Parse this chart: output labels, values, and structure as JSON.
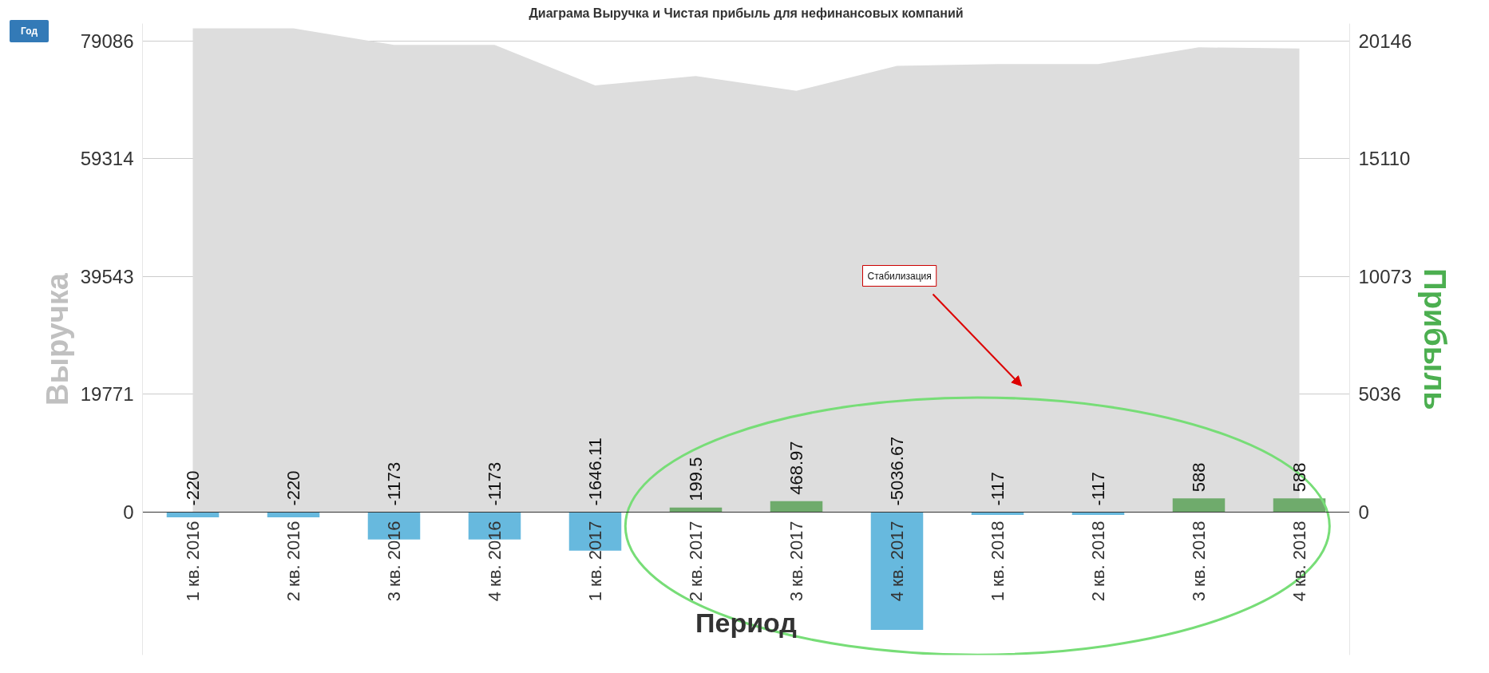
{
  "chart_data": {
    "type": "bar",
    "title": "Диаграма Выручка и Чистая прибыль для нефинансовых компаний",
    "xlabel": "Период",
    "ylabel": "Выручка",
    "y2label": "Прибыль",
    "categories": [
      "1 кв. 2016",
      "2 кв. 2016",
      "3 кв. 2016",
      "4 кв. 2016",
      "1 кв. 2017",
      "2 кв. 2017",
      "3 кв. 2017",
      "4 кв. 2017",
      "1 кв. 2018",
      "2 кв. 2018",
      "3 кв. 2018",
      "4 кв. 2018"
    ],
    "series": [
      {
        "type": "area",
        "axis": "y",
        "color": "#dddddd",
        "values": [
          81200,
          81200,
          78400,
          78400,
          71600,
          73200,
          70700,
          74900,
          75200,
          75200,
          78000,
          77800
        ]
      },
      {
        "axis": "y2",
        "colors": [
          "#67b9de",
          "#67b9de",
          "#67b9de",
          "#67b9de",
          "#67b9de",
          "#6fab6c",
          "#6fab6c",
          "#67b9de",
          "#67b9de",
          "#67b9de",
          "#6fab6c",
          "#6fab6c"
        ],
        "values": [
          -220,
          -220,
          -1173,
          -1173,
          -1646.11,
          199.5,
          468.97,
          -5036.67,
          -117,
          -117,
          588,
          588
        ],
        "value_labels": [
          "-220",
          "-220",
          "-1173",
          "-1173",
          "-1646.11",
          "199.5",
          "468.97",
          "-5036.67",
          "-117",
          "-117",
          "588",
          "588"
        ]
      }
    ],
    "ylim": [
      -24000,
      82000
    ],
    "yticks": [
      0,
      19771,
      39543,
      59314,
      79086
    ],
    "y2lim": [
      -6110,
      20890
    ],
    "y2ticks": [
      0,
      5036,
      10073,
      15110,
      20146
    ],
    "grid": "y",
    "annotations": [
      "Год",
      "Стабилизация"
    ]
  }
}
